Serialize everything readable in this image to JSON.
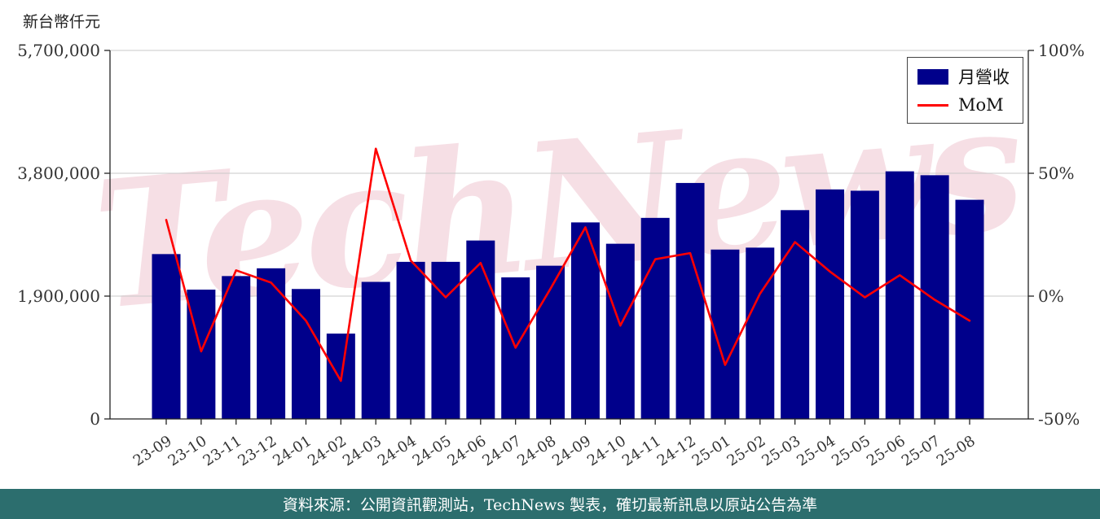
{
  "watermark": {
    "text": "TechNews",
    "color": "#c8325a"
  },
  "footer": {
    "text": "資料來源：公開資訊觀測站，TechNews 製表，確切最新訊息以原站公告為準",
    "bg": "#2c6e6e"
  },
  "chart_data": {
    "type": "bar+line",
    "title": "",
    "y_left_label": "新台幣仟元",
    "legend_position": "top-right",
    "grid": true,
    "categories": [
      "23-09",
      "23-10",
      "23-11",
      "23-12",
      "24-01",
      "24-02",
      "24-03",
      "24-04",
      "24-05",
      "24-06",
      "24-07",
      "24-08",
      "24-09",
      "24-10",
      "24-11",
      "24-12",
      "25-01",
      "25-02",
      "25-03",
      "25-04",
      "25-05",
      "25-06",
      "25-07",
      "25-08"
    ],
    "series": [
      {
        "name": "月營收",
        "type": "bar",
        "axis": "left",
        "color": "#00008B",
        "values": [
          2550000,
          2000000,
          2210000,
          2330000,
          2010000,
          1320000,
          2120000,
          2430000,
          2430000,
          2760000,
          2190000,
          2370000,
          3040000,
          2710000,
          3110000,
          3650000,
          2620000,
          2650000,
          3230000,
          3550000,
          3530000,
          3830000,
          3770000,
          3390000
        ]
      },
      {
        "name": "MoM",
        "type": "line",
        "axis": "right",
        "unit": "%",
        "color": "#ff0000",
        "values": [
          31,
          -22.5,
          10.5,
          5.5,
          -10,
          -34.5,
          60,
          14.5,
          -0.5,
          13.5,
          -21,
          3,
          28,
          -12,
          15,
          17.5,
          -28,
          1,
          22,
          10,
          -0.5,
          8.5,
          -1.5,
          -10
        ]
      }
    ],
    "y_left": {
      "min": 0,
      "max": 5700000,
      "tick_values": [
        0,
        1900000,
        3800000,
        5700000
      ],
      "tick_labels": [
        "0",
        "1,900,000",
        "3,800,000",
        "5,700,000"
      ]
    },
    "y_right": {
      "min": -50,
      "max": 100,
      "tick_values": [
        -50,
        0,
        50,
        100
      ],
      "tick_labels": [
        "-50%",
        "0%",
        "50%",
        "100%"
      ]
    }
  }
}
